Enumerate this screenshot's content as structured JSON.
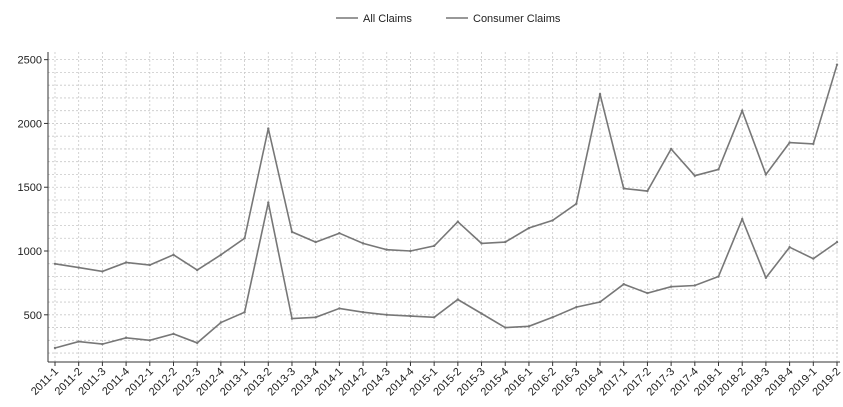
{
  "chart_data": {
    "type": "line",
    "title": "",
    "xlabel": "",
    "ylabel": "",
    "categories": [
      "2011-1",
      "2011-2",
      "2011-3",
      "2011-4",
      "2012-1",
      "2012-2",
      "2012-3",
      "2012-4",
      "2013-1",
      "2013-2",
      "2013-3",
      "2013-4",
      "2014-1",
      "2014-2",
      "2014-3",
      "2014-4",
      "2015-1",
      "2015-2",
      "2015-3",
      "2015-4",
      "2016-1",
      "2016-2",
      "2016-3",
      "2016-4",
      "2017-1",
      "2017-2",
      "2017-3",
      "2017-4",
      "2018-1",
      "2018-2",
      "2018-3",
      "2018-4",
      "2019-1",
      "2019-2"
    ],
    "y_ticks": [
      500,
      1000,
      1500,
      2000,
      2500
    ],
    "ylim": [
      130,
      2560
    ],
    "grid": true,
    "legend_position": "top-center",
    "series": [
      {
        "name": "All Claims",
        "color": "#777777",
        "values": [
          900,
          870,
          840,
          910,
          890,
          970,
          850,
          970,
          1100,
          1960,
          1150,
          1070,
          1140,
          1060,
          1010,
          1000,
          1040,
          1230,
          1060,
          1070,
          1180,
          1240,
          1370,
          2230,
          1490,
          1470,
          1800,
          1590,
          1640,
          2100,
          1600,
          1850,
          1840,
          2460
        ]
      },
      {
        "name": "Consumer Claims",
        "color": "#777777",
        "values": [
          240,
          290,
          270,
          320,
          300,
          350,
          280,
          440,
          520,
          1380,
          470,
          480,
          550,
          520,
          500,
          490,
          480,
          620,
          510,
          400,
          410,
          480,
          560,
          600,
          740,
          670,
          720,
          730,
          800,
          1250,
          790,
          1030,
          940,
          1070
        ]
      }
    ]
  }
}
